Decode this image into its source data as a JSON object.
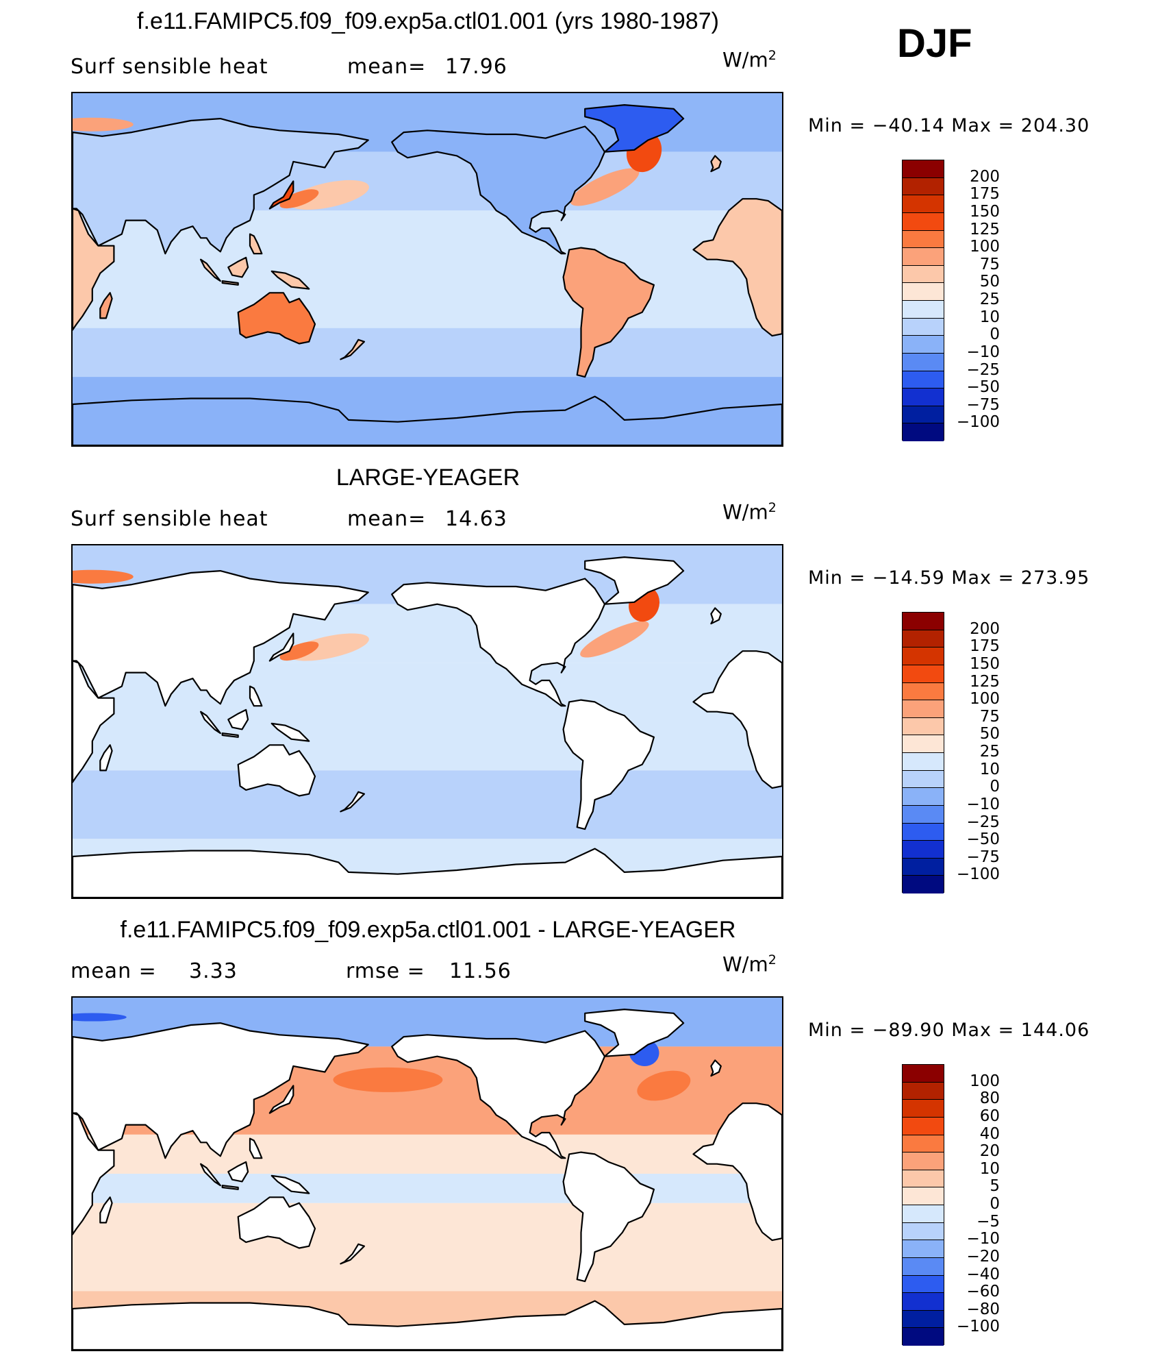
{
  "season": "DJF",
  "panels": [
    {
      "title": "f.e11.FAMIPC5.f09_f09.exp5a.ctl01.001 (yrs 1980-1987)",
      "left_label": "Surf  sensible  heat",
      "stat_label": "mean=",
      "stat_value": "17.96",
      "stat2_label": "",
      "stat2_value": "",
      "units_base": "W/m",
      "units_exp": "2",
      "min_label": "Min  =  −40.14  Max  =  204.30",
      "land_filled": true,
      "colorbar": {
        "labels": [
          "200",
          "175",
          "150",
          "125",
          "100",
          "75",
          "50",
          "25",
          "10",
          "0",
          "−10",
          "−25",
          "−50",
          "−75",
          "−100"
        ],
        "colors": [
          "#8b0000",
          "#b22200",
          "#d43400",
          "#f24a10",
          "#fa7a40",
          "#fba27a",
          "#fcc8aa",
          "#fde6d6",
          "#d6e8fc",
          "#b8d2fb",
          "#8ab2f8",
          "#5a8af4",
          "#2d5cf0",
          "#1230d0",
          "#001fa0",
          "#000a80"
        ]
      }
    },
    {
      "title": "LARGE-YEAGER",
      "left_label": "Surf  sensible  heat",
      "stat_label": "mean=",
      "stat_value": "14.63",
      "stat2_label": "",
      "stat2_value": "",
      "units_base": "W/m",
      "units_exp": "2",
      "min_label": "Min  =  −14.59  Max  =  273.95",
      "land_filled": false,
      "colorbar": {
        "labels": [
          "200",
          "175",
          "150",
          "125",
          "100",
          "75",
          "50",
          "25",
          "10",
          "0",
          "−10",
          "−25",
          "−50",
          "−75",
          "−100"
        ],
        "colors": [
          "#8b0000",
          "#b22200",
          "#d43400",
          "#f24a10",
          "#fa7a40",
          "#fba27a",
          "#fcc8aa",
          "#fde6d6",
          "#d6e8fc",
          "#b8d2fb",
          "#8ab2f8",
          "#5a8af4",
          "#2d5cf0",
          "#1230d0",
          "#001fa0",
          "#000a80"
        ]
      }
    },
    {
      "title": "f.e11.FAMIPC5.f09_f09.exp5a.ctl01.001 - LARGE-YEAGER",
      "left_label": "mean  =",
      "stat_label": "",
      "stat_value": "3.33",
      "stat2_label": "rmse  =",
      "stat2_value": "11.56",
      "units_base": "W/m",
      "units_exp": "2",
      "min_label": "Min  =  −89.90  Max  =  144.06",
      "land_filled": false,
      "colorbar": {
        "labels": [
          "100",
          "80",
          "60",
          "40",
          "20",
          "10",
          "5",
          "0",
          "−5",
          "−10",
          "−20",
          "−40",
          "−60",
          "−80",
          "−100"
        ],
        "colors": [
          "#8b0000",
          "#b22200",
          "#d43400",
          "#f24a10",
          "#fa7a40",
          "#fba27a",
          "#fcc8aa",
          "#fde6d6",
          "#d6e8fc",
          "#b8d2fb",
          "#8ab2f8",
          "#5a8af4",
          "#2d5cf0",
          "#1230d0",
          "#001fa0",
          "#000a80"
        ]
      }
    }
  ]
}
